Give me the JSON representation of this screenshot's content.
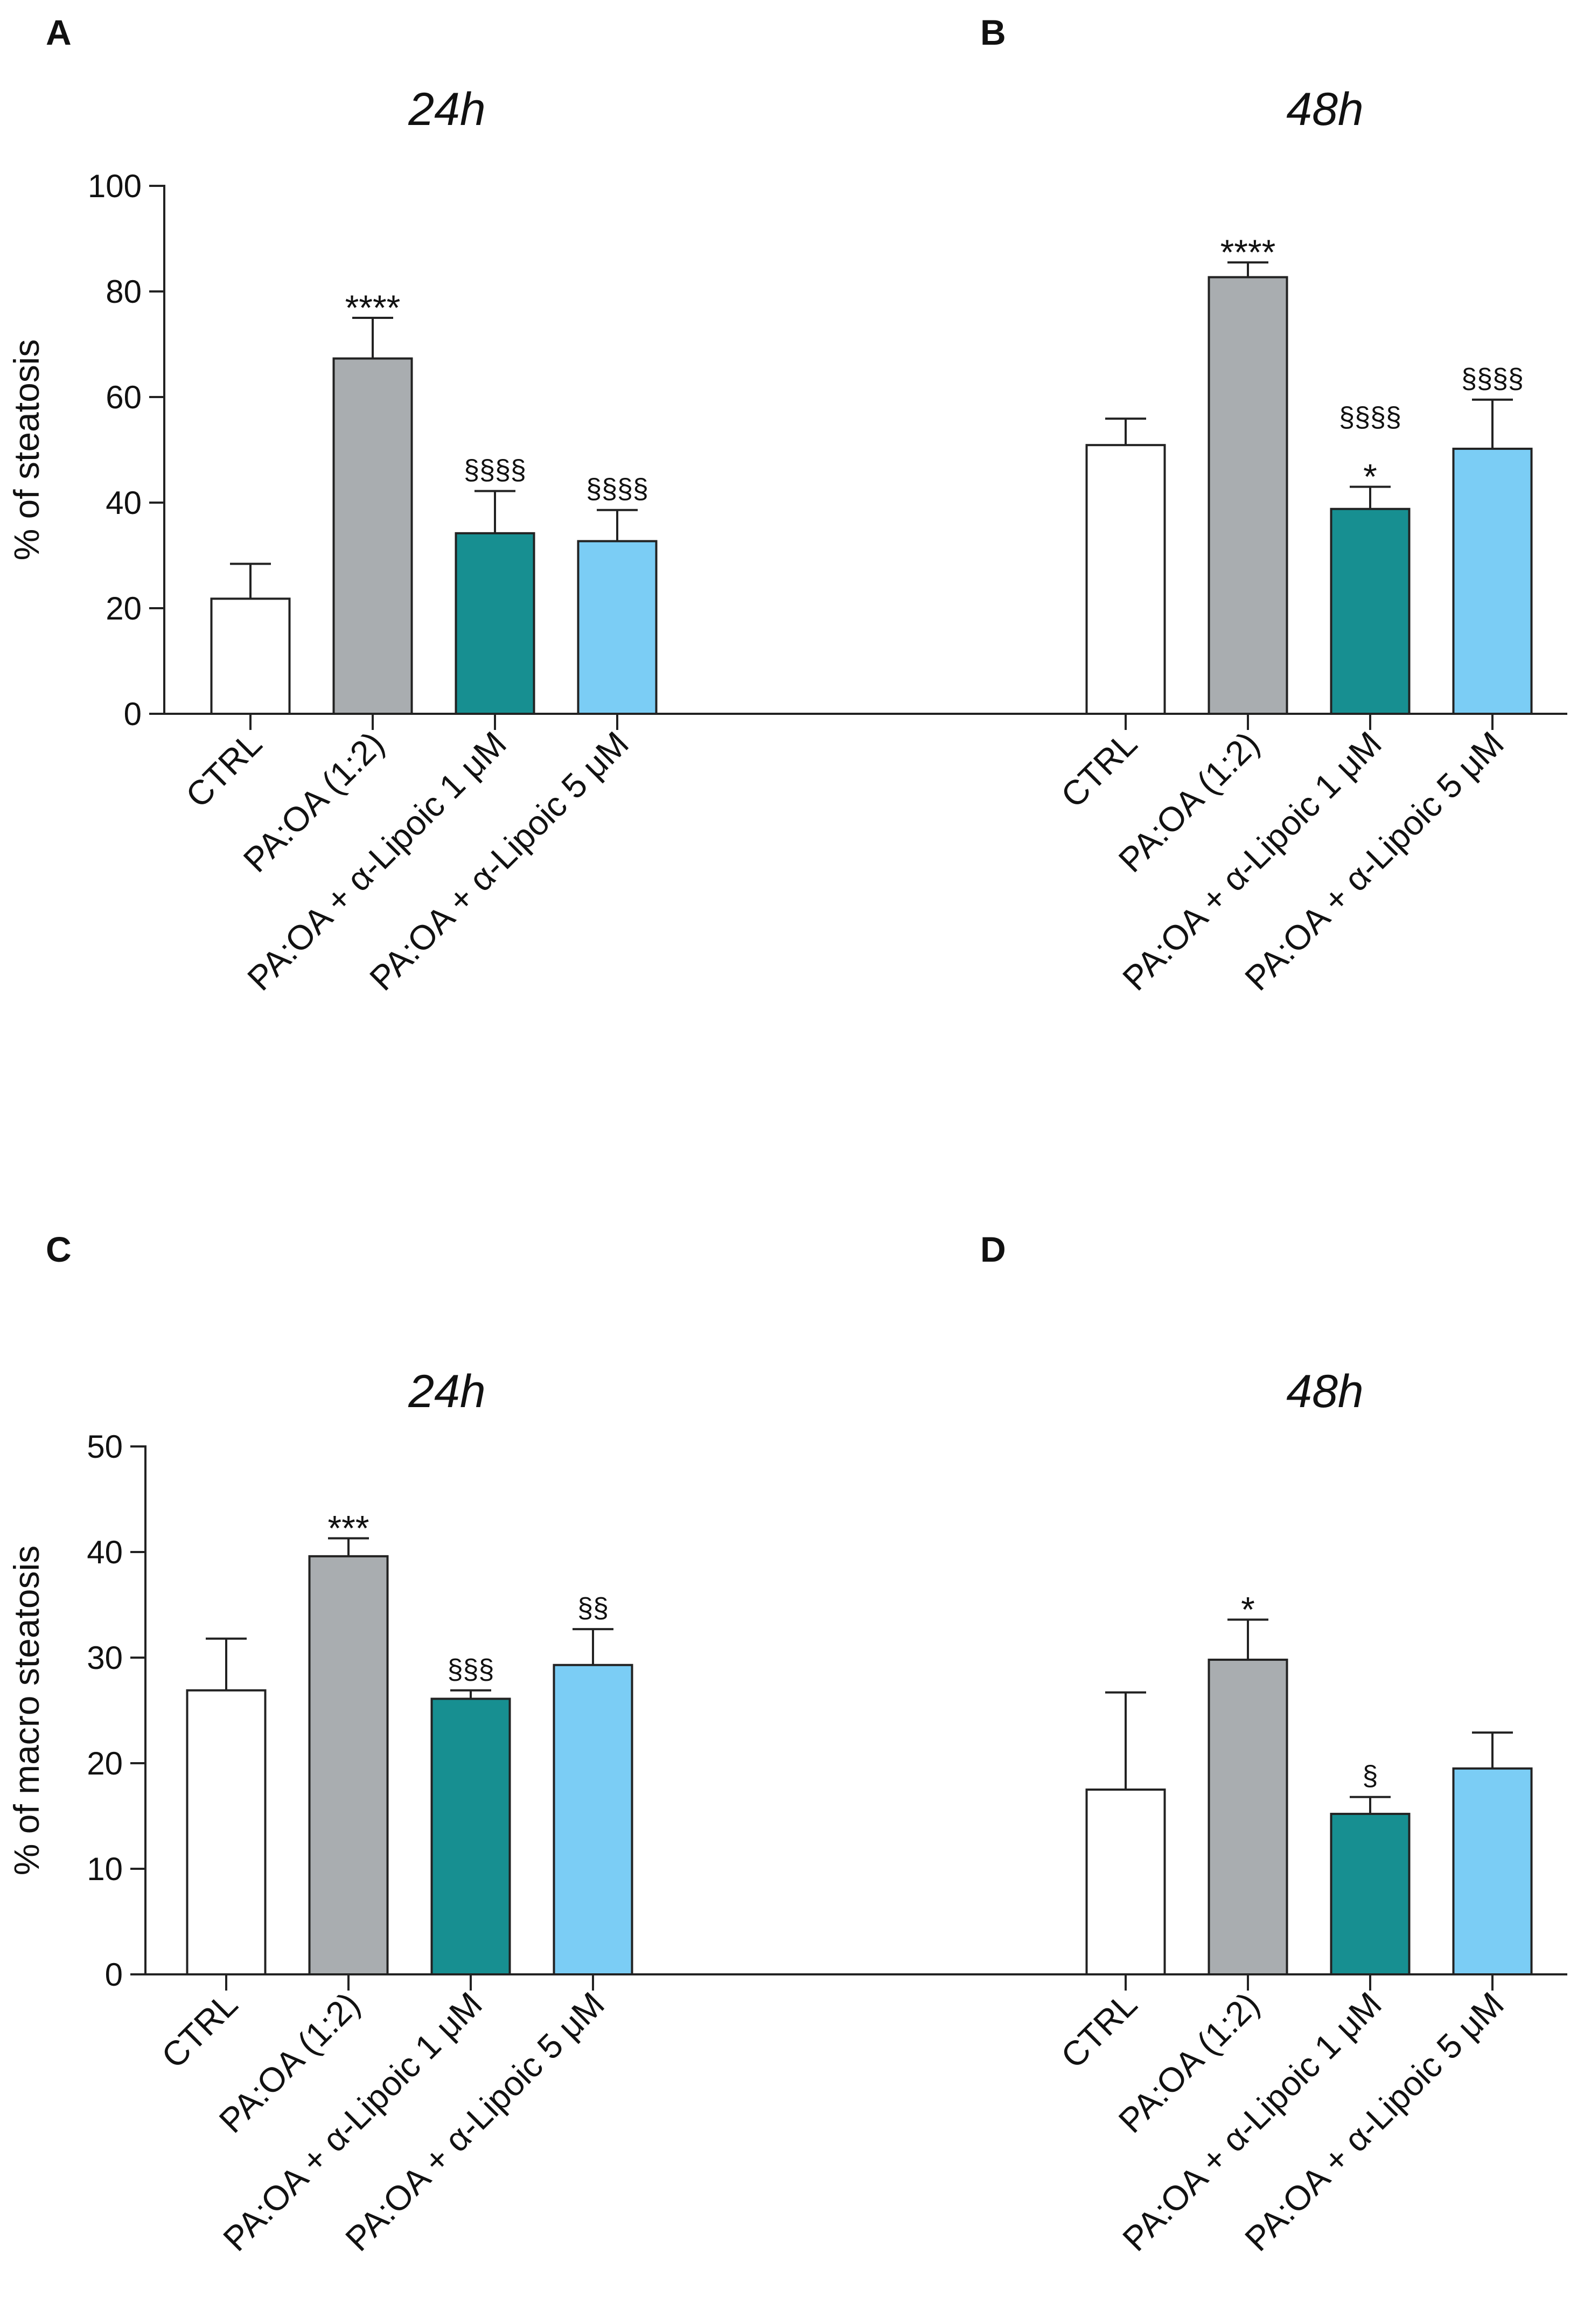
{
  "figure": {
    "chart_data": [
      {
        "panel": "A",
        "type": "bar",
        "title": "24h",
        "ylabel": "% of steatosis",
        "ylim": [
          0,
          100
        ],
        "yticks": [
          0,
          20,
          40,
          60,
          80,
          100
        ],
        "categories": [
          "CTRL",
          "PA:OA (1:2)",
          "PA:OA + α-Lipoic 1 μM",
          "PA:OA + α-Lipoic 5 μM"
        ],
        "values": [
          21.8,
          67.3,
          34.2,
          32.7
        ],
        "errors": [
          6.6,
          7.7,
          8.0,
          5.9
        ],
        "annotations_upper": [
          "",
          "",
          "§§§§",
          "§§§§"
        ],
        "annotations_lower": [
          "",
          "****",
          "",
          ""
        ],
        "colors": [
          "#ffffff",
          "#a9adb0",
          "#178f91",
          "#7bcdf5"
        ]
      },
      {
        "panel": "B",
        "type": "bar",
        "title": "48h",
        "ylabel": "",
        "ylim": [
          0,
          100
        ],
        "yticks": [],
        "categories": [
          "CTRL",
          "PA:OA (1:2)",
          "PA:OA + α-Lipoic 1 μM",
          "PA:OA + α-Lipoic 5 μM"
        ],
        "values": [
          50.9,
          82.7,
          38.8,
          50.2
        ],
        "errors": [
          5.0,
          2.8,
          4.2,
          9.3
        ],
        "annotations_upper": [
          "",
          "",
          "§§§§",
          "§§§§"
        ],
        "annotations_lower": [
          "",
          "****",
          "*",
          ""
        ],
        "colors": [
          "#ffffff",
          "#a9adb0",
          "#178f91",
          "#7bcdf5"
        ]
      },
      {
        "panel": "C",
        "type": "bar",
        "title": "24h",
        "ylabel": "% of macro steatosis",
        "ylim": [
          0,
          50
        ],
        "yticks": [
          0,
          10,
          20,
          30,
          40,
          50
        ],
        "categories": [
          "CTRL",
          "PA:OA (1:2)",
          "PA:OA + α-Lipoic 1 μM",
          "PA:OA + α-Lipoic 5 μM"
        ],
        "values": [
          26.9,
          39.6,
          26.1,
          29.3
        ],
        "errors": [
          4.9,
          1.7,
          0.8,
          3.4
        ],
        "annotations_upper": [
          "",
          "",
          "§§§",
          "§§"
        ],
        "annotations_lower": [
          "",
          "***",
          "",
          ""
        ],
        "colors": [
          "#ffffff",
          "#a9adb0",
          "#178f91",
          "#7bcdf5"
        ]
      },
      {
        "panel": "D",
        "type": "bar",
        "title": "48h",
        "ylabel": "",
        "ylim": [
          0,
          50
        ],
        "yticks": [],
        "categories": [
          "CTRL",
          "PA:OA (1:2)",
          "PA:OA + α-Lipoic 1 μM",
          "PA:OA + α-Lipoic 5 μM"
        ],
        "values": [
          17.5,
          29.8,
          15.2,
          19.5
        ],
        "errors": [
          9.2,
          3.8,
          1.6,
          3.4
        ],
        "annotations_upper": [
          "",
          "",
          "§",
          ""
        ],
        "annotations_lower": [
          "",
          "*",
          "",
          ""
        ],
        "colors": [
          "#ffffff",
          "#a9adb0",
          "#178f91",
          "#7bcdf5"
        ]
      }
    ]
  }
}
